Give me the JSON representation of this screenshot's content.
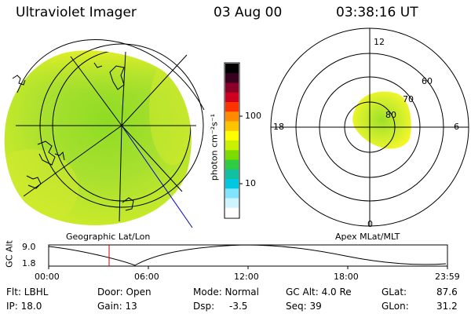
{
  "header": {
    "instrument": "Ultraviolet Imager",
    "date": "03 Aug 00",
    "time": "03:38:16 UT"
  },
  "panels": {
    "geo_label": "Geographic Lat/Lon",
    "apex_label": "Apex MLat/MLT"
  },
  "colorbar": {
    "unit_label": "photon cm⁻²s⁻¹",
    "tick_100": "100",
    "tick_10": "10",
    "colors": [
      "#000000",
      "#3a0020",
      "#8a0028",
      "#d00020",
      "#ff3300",
      "#ff8c00",
      "#ffc400",
      "#ffff00",
      "#c8f000",
      "#7cdc00",
      "#2ecc40",
      "#10c0a0",
      "#00c8e0",
      "#80e4ff",
      "#d0f4ff",
      "#ffffff"
    ]
  },
  "polar": {
    "mlt": {
      "top": "12",
      "left": "18",
      "right": "6",
      "bottom": "0"
    },
    "lat": {
      "l60": "60",
      "l70": "70",
      "l80": "80"
    }
  },
  "timeline": {
    "gc_label": "GC Alt",
    "y_top": "9.0",
    "y_bottom": "1.8",
    "ticks": [
      "00:00",
      "06:00",
      "12:00",
      "18:00",
      "23:59"
    ],
    "marker_hour": 3.64
  },
  "status": {
    "flt": "Flt: LBHL",
    "door": "Door: Open",
    "mode": "Mode: Normal",
    "gcalt": "GC Alt: 4.0 Re",
    "glat_label": "GLat:",
    "glat_value": "87.6",
    "ip": "IP: 18.0",
    "gain": "Gain: 13",
    "dsp_label": "Dsp:",
    "dsp_value": "-3.5",
    "seq": "Seq: 39",
    "glon_label": "GLon:",
    "glon_value": "31.2"
  }
}
